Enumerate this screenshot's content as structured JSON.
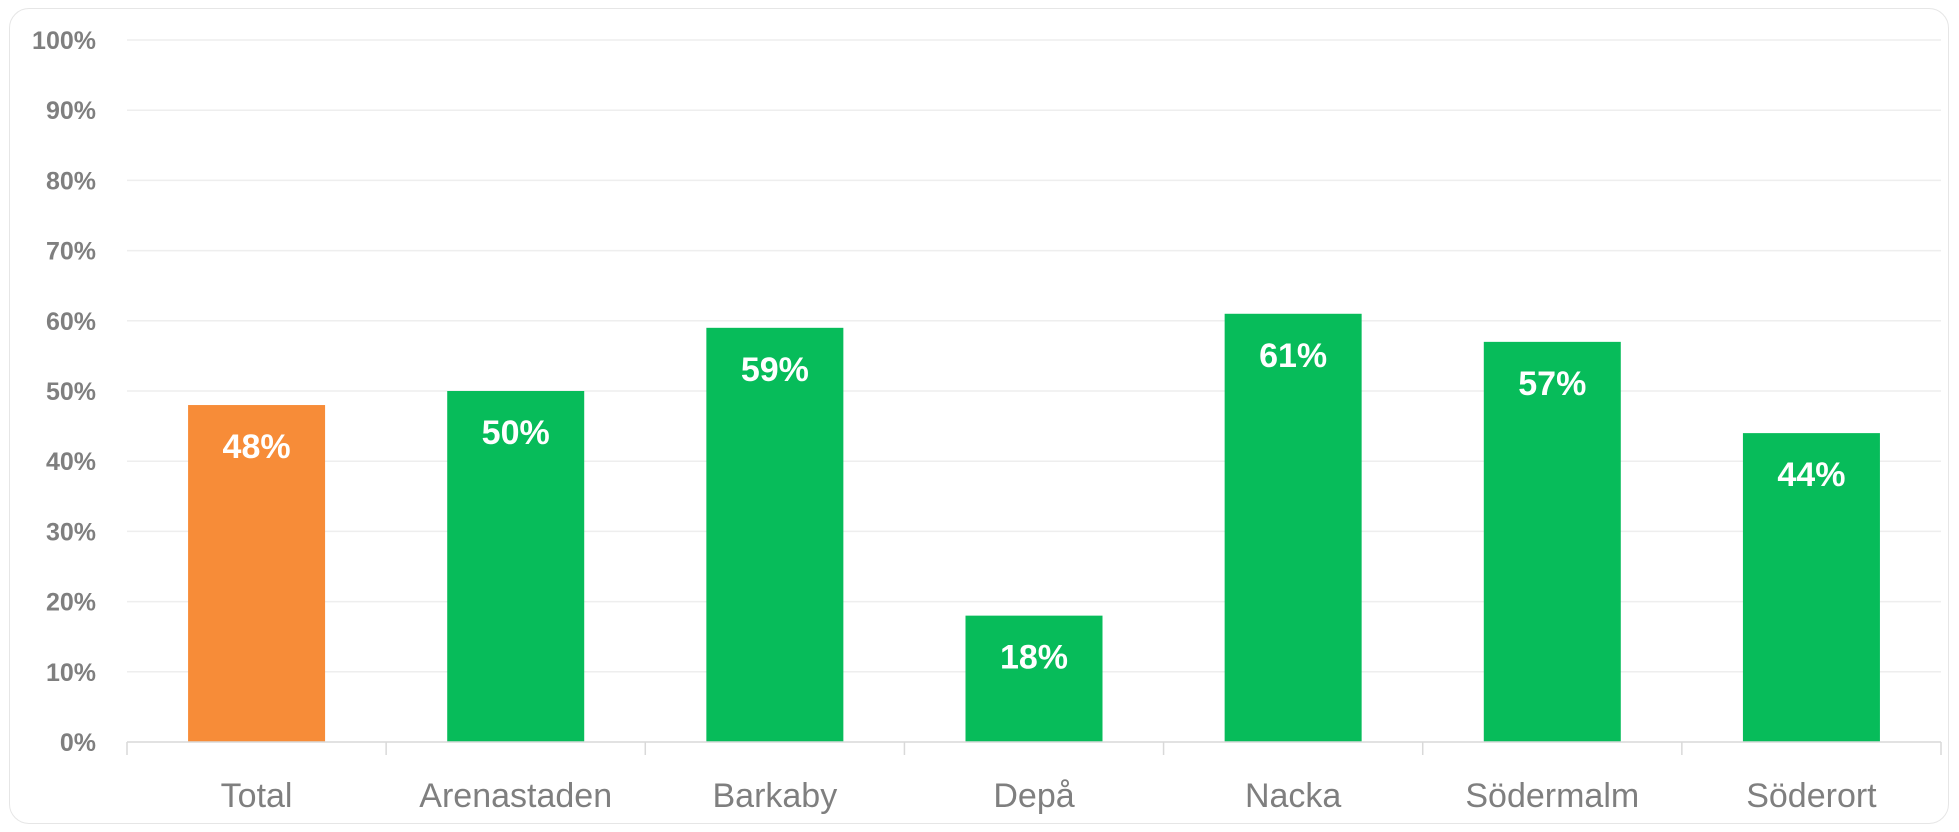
{
  "chart_data": {
    "type": "bar",
    "categories": [
      "Total",
      "Arenastaden",
      "Barkaby",
      "Depå",
      "Nacka",
      "Södermalm",
      "Söderort"
    ],
    "values": [
      0.48,
      0.5,
      0.59,
      0.18,
      0.61,
      0.57,
      0.44
    ],
    "data_labels": [
      "48%",
      "50%",
      "59%",
      "18%",
      "61%",
      "57%",
      "44%"
    ],
    "bar_colors": [
      "#F78C38",
      "#07BC5A",
      "#07BC5A",
      "#07BC5A",
      "#07BC5A",
      "#07BC5A",
      "#07BC5A"
    ],
    "title": "",
    "xlabel": "",
    "ylabel": "",
    "ylim": [
      0,
      1
    ],
    "y_ticks": [
      0,
      0.1,
      0.2,
      0.3,
      0.4,
      0.5,
      0.6,
      0.7,
      0.8,
      0.9,
      1.0
    ],
    "y_tick_labels": [
      "0%",
      "10%",
      "20%",
      "30%",
      "40%",
      "50%",
      "60%",
      "70%",
      "80%",
      "90%",
      "100%"
    ],
    "grid": true,
    "legend": "none"
  }
}
